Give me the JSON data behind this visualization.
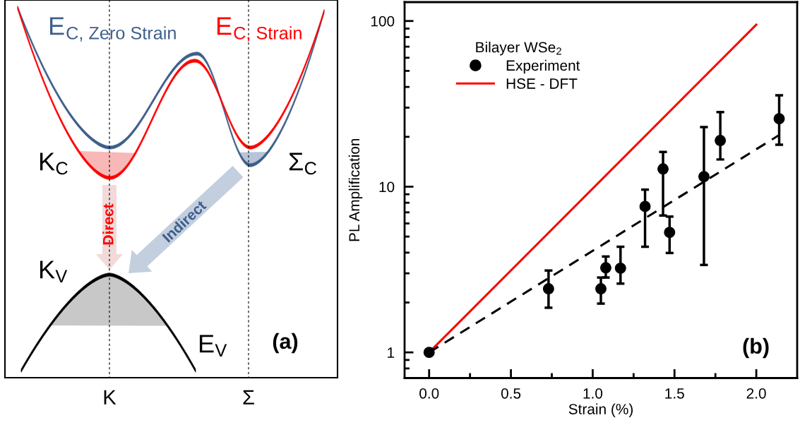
{
  "chart_data": [
    {
      "type": "other",
      "categories": [
        "K",
        "Σ"
      ],
      "annotations": [
        "E$_{C, Zero Strain}$",
        "E$_{C, Strain}$",
        "K$_{C}$",
        "Σ$_{C}$",
        "Direct",
        "Indirect",
        "K$_{V}$",
        "E$_{V}$",
        "(a)"
      ]
    },
    {
      "type": "scatter",
      "xlabel": "Strain (%)",
      "ylabel": "PL Amplification",
      "log": true,
      "xlim": [
        -0.15,
        2.25
      ],
      "ylim": [
        0.7,
        130
      ],
      "xticks": [
        {
          "value": 0.0,
          "label": "0.0"
        },
        {
          "value": 0.25,
          "label": null
        },
        {
          "value": 0.5,
          "label": "0.5"
        },
        {
          "value": 0.75,
          "label": null
        },
        {
          "value": 1.0,
          "label": "1.0"
        },
        {
          "value": 1.25,
          "label": null
        },
        {
          "value": 1.5,
          "label": "1.5"
        },
        {
          "value": 1.75,
          "label": null
        },
        {
          "value": 2.0,
          "label": "2.0"
        }
      ],
      "yticks": [
        1,
        10,
        100
      ],
      "legend": "top left",
      "legend_title": "Bilayer WSe$_{2}$",
      "grid": false,
      "annotations": [
        "(b)"
      ],
      "series": [
        {
          "name": "Experiment",
          "type": "scatter",
          "marker": "circle",
          "color": "#000000",
          "x": [
            0,
            0.73,
            1.05,
            1.08,
            1.17,
            1.32,
            1.43,
            1.47,
            1.68,
            1.78,
            2.14
          ],
          "values": [
            1,
            2.42,
            2.42,
            3.24,
            3.22,
            7.6,
            12.8,
            5.3,
            11.5,
            19.0,
            25.7
          ],
          "errors": [
            null,
            [
              1.86,
              3.12
            ],
            [
              1.97,
              2.83
            ],
            [
              2.83,
              3.79
            ],
            [
              2.6,
              4.34
            ],
            [
              4.34,
              9.6
            ],
            [
              6.7,
              16.2
            ],
            [
              3.98,
              6.6
            ],
            [
              3.37,
              22.9
            ],
            [
              14.6,
              28.2
            ],
            [
              17.9,
              35.6
            ]
          ]
        },
        {
          "name": "HSE - DFT",
          "type": "line",
          "color": "#ff0000",
          "x": [
            0,
            2.0
          ],
          "values": [
            1,
            95
          ]
        },
        {
          "type": "line",
          "color": "#000000",
          "line_style": "dashed",
          "x": [
            0,
            2.14
          ],
          "values": [
            1,
            20.5
          ]
        }
      ]
    }
  ]
}
